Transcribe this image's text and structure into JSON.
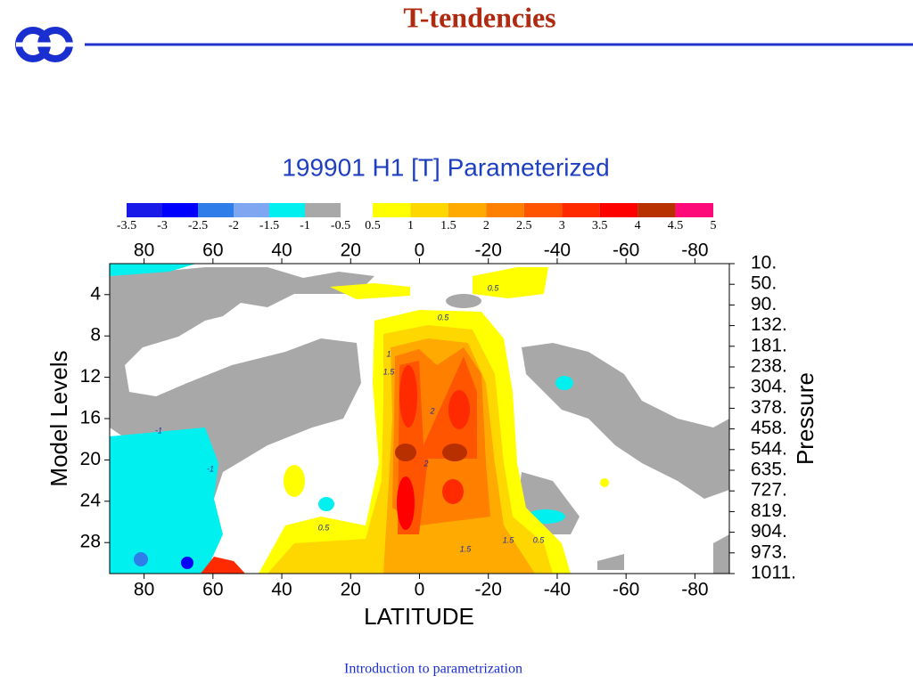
{
  "header": {
    "title": "T-tendencies"
  },
  "chart_data": {
    "type": "contour",
    "title": "199901 H1  [T] Parameterized",
    "x_label": "LATITUDE",
    "y_label": "Model Levels",
    "y2_label": "Pressure",
    "xlim": [
      90,
      -90
    ],
    "xticks": [
      80,
      60,
      40,
      20,
      0,
      -20,
      -40,
      -60,
      -80
    ],
    "ylim": [
      1,
      31
    ],
    "yticks": [
      4,
      8,
      12,
      16,
      20,
      24,
      28
    ],
    "y2_labels": [
      "10.",
      "50.",
      "90.",
      "132.",
      "181.",
      "238.",
      "304.",
      "378.",
      "458.",
      "544.",
      "635.",
      "727.",
      "819.",
      "904.",
      "973.",
      "1011."
    ],
    "colorbar": [
      {
        "labels": [
          -3.5,
          -3,
          -2.5,
          -2,
          -1.5,
          -1,
          -0.5
        ],
        "colors": [
          "#1a1ae8",
          "#0000ff",
          "#2f7de8",
          "#7fa6f0",
          "#00f0f0",
          "#a8a8a8"
        ]
      },
      {
        "labels": [
          0.5,
          1,
          1.5,
          2,
          2.5,
          3,
          3.5,
          4,
          4.5,
          5
        ],
        "colors": [
          "#ffff00",
          "#ffd700",
          "#ffaa00",
          "#ff7f00",
          "#ff5500",
          "#ff2a00",
          "#ff0000",
          "#b83000",
          "#ff0a78"
        ]
      }
    ],
    "contour_labels": [
      "0.5",
      "0.5",
      "1.5",
      "1",
      "2",
      "2",
      "0.5",
      "1.5",
      "1.5",
      "0.5",
      "-1",
      "-1"
    ]
  },
  "footer": {
    "text": "Introduction to parametrization"
  }
}
